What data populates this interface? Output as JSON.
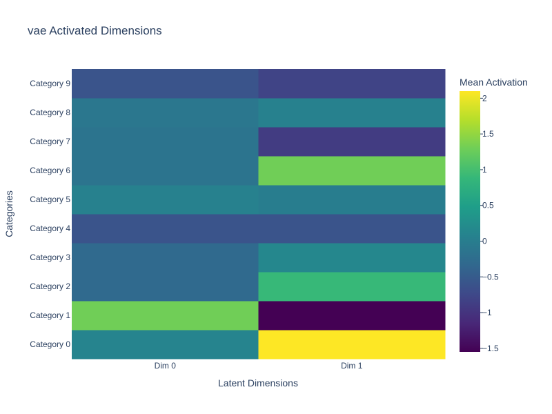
{
  "chart_data": {
    "type": "heatmap",
    "title": "vae Activated Dimensions",
    "xlabel": "Latent Dimensions",
    "ylabel": "Categories",
    "x": [
      "Dim 0",
      "Dim 1"
    ],
    "y": [
      "Category 0",
      "Category 1",
      "Category 2",
      "Category 3",
      "Category 4",
      "Category 5",
      "Category 6",
      "Category 7",
      "Category 8",
      "Category 9"
    ],
    "z": [
      [
        0.1,
        2.1
      ],
      [
        1.3,
        -1.55
      ],
      [
        -0.3,
        0.9
      ],
      [
        -0.3,
        0.15
      ],
      [
        -0.6,
        -0.6
      ],
      [
        0.05,
        0.0
      ],
      [
        -0.15,
        1.3
      ],
      [
        -0.15,
        -0.9
      ],
      [
        -0.1,
        0.05
      ],
      [
        -0.6,
        -0.8
      ]
    ],
    "colorscale": "Viridis",
    "zrange": [
      -1.55,
      2.1
    ],
    "colorbar": {
      "title": "Mean Activation",
      "ticks": [
        2,
        1.5,
        1,
        0.5,
        0,
        -0.5,
        -1,
        -1.5
      ],
      "ticklabels": [
        "2",
        "1.5",
        "1",
        "0.5",
        "0",
        "−0.5",
        "−1",
        "−1.5"
      ]
    }
  }
}
